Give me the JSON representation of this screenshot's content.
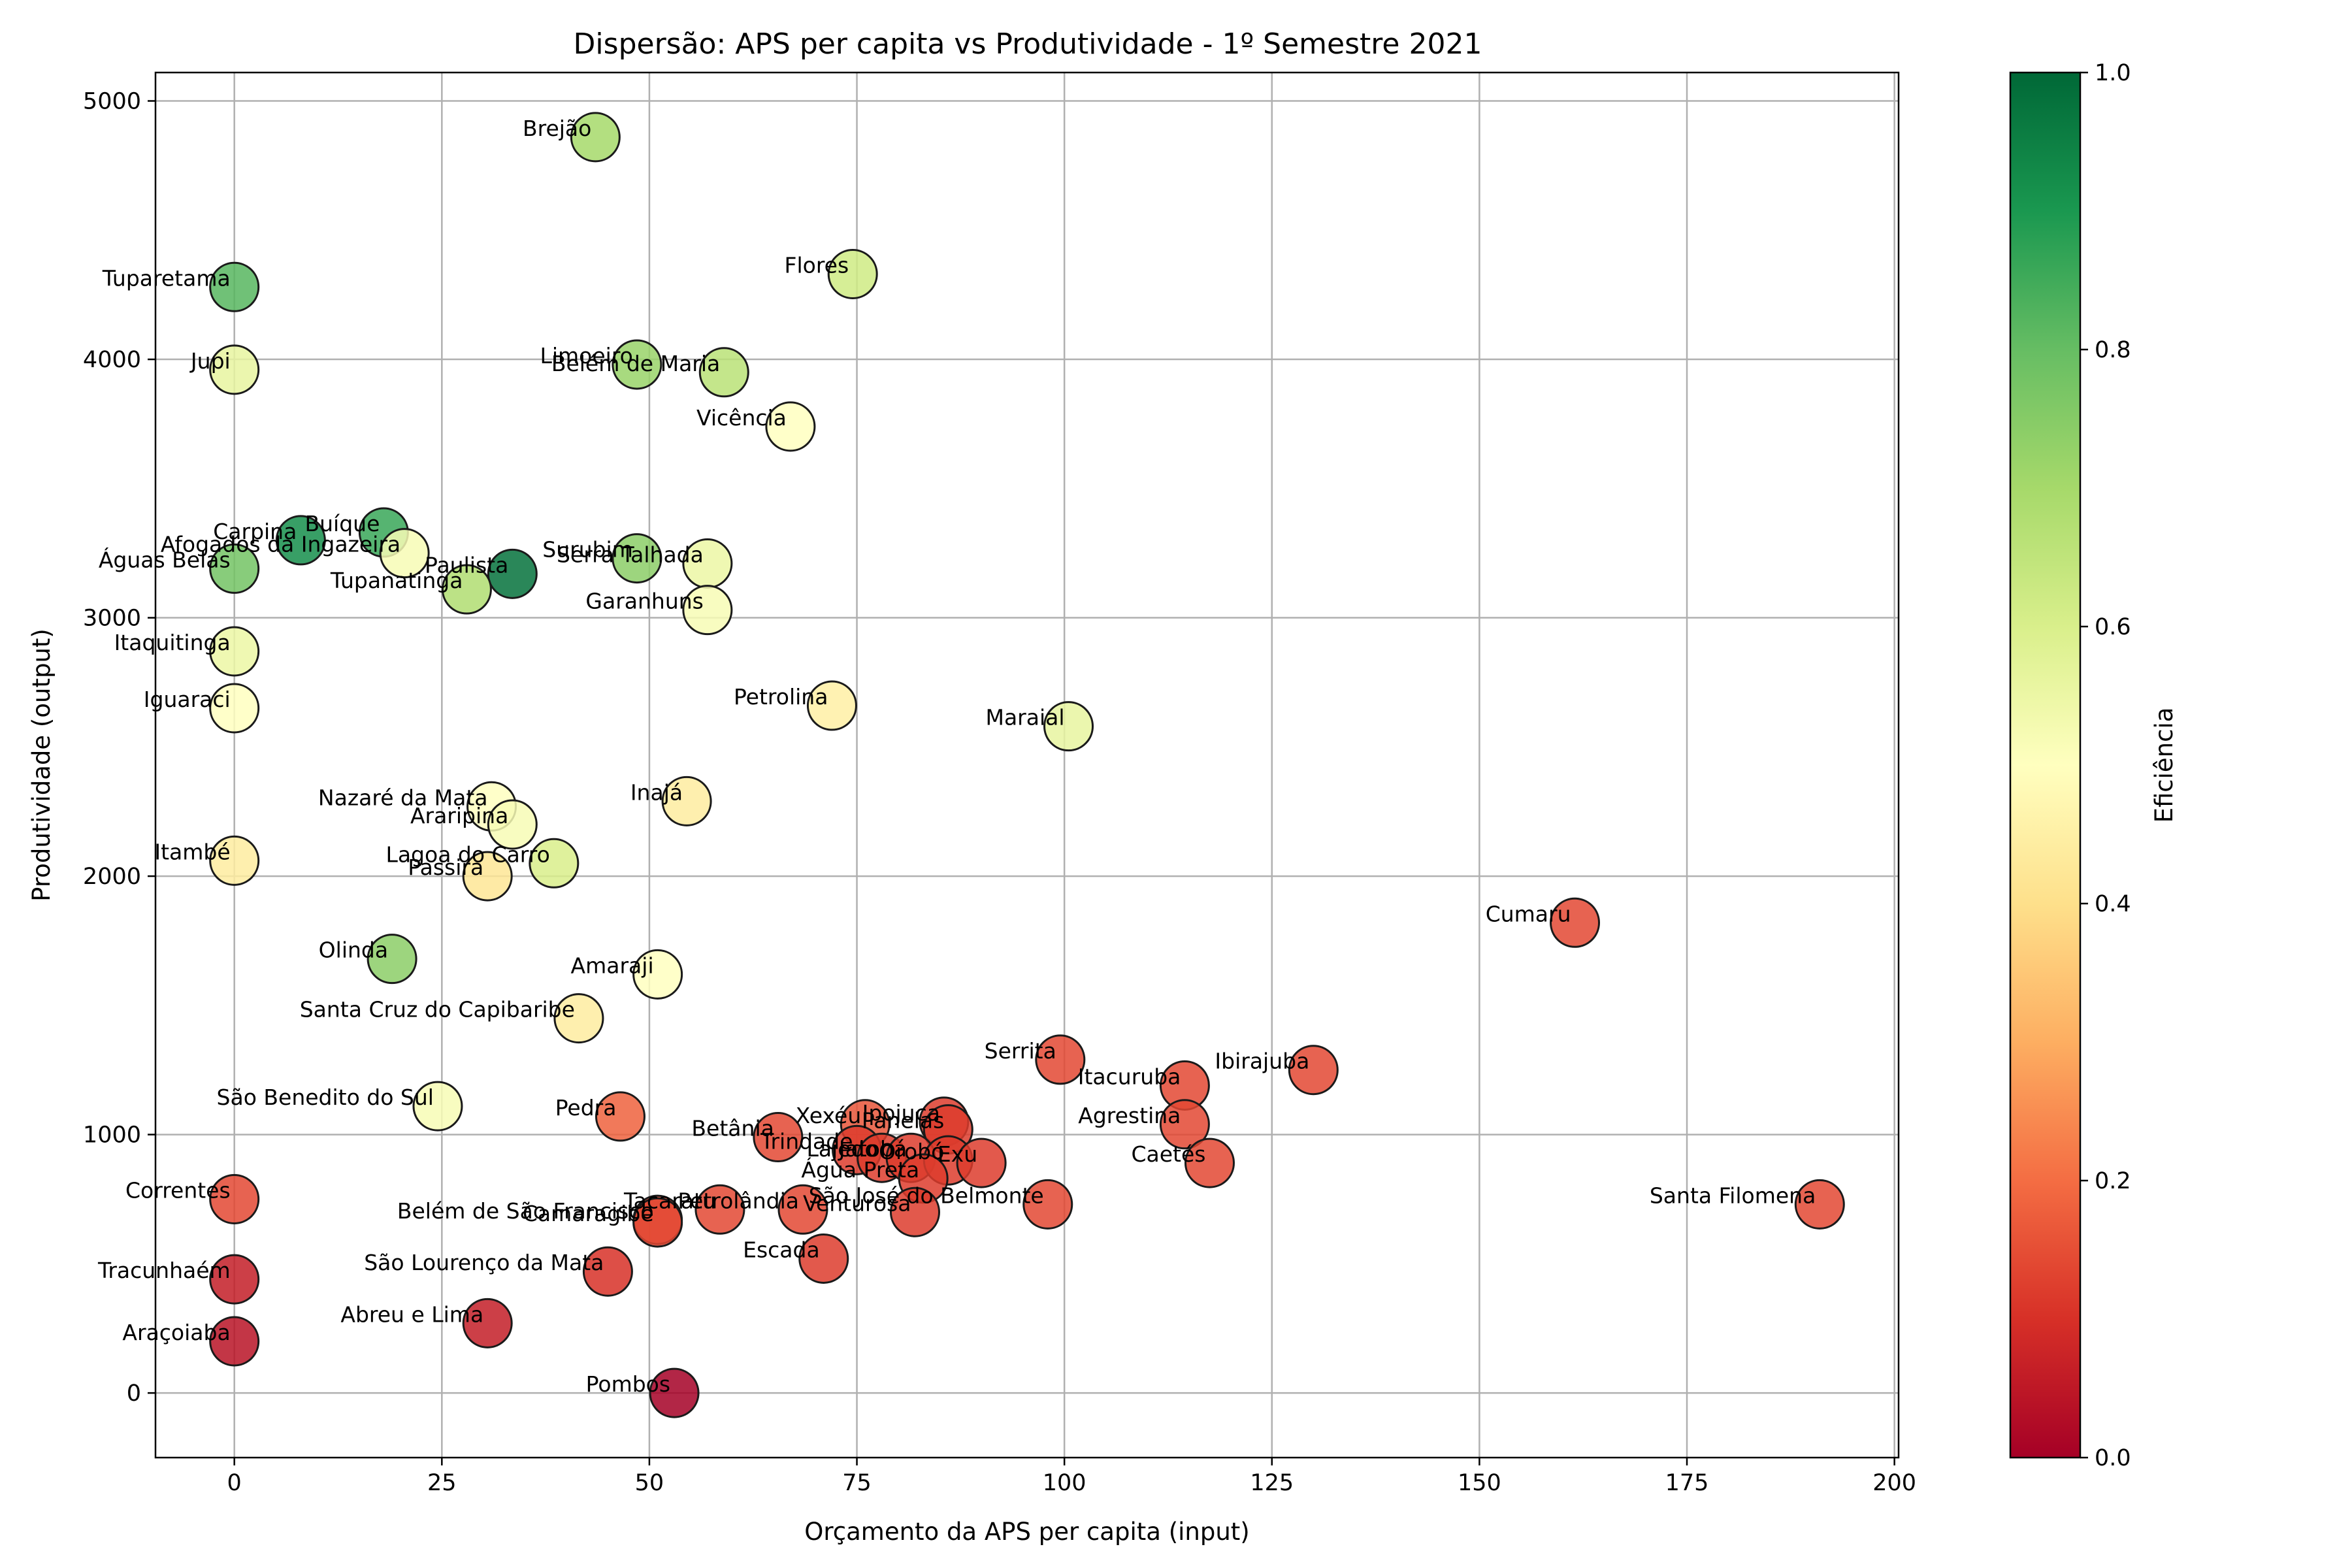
{
  "chart_data": {
    "type": "scatter",
    "title": "Dispersão: APS per capita vs Produtividade - 1º Semestre 2021",
    "xlabel": "Orçamento da APS per capita (input)",
    "ylabel": "Produtividade (output)",
    "xlim": [
      -9.5,
      200.5
    ],
    "ylim": [
      -250,
      5110
    ],
    "xticks": [
      0,
      25,
      50,
      75,
      100,
      125,
      150,
      175,
      200
    ],
    "yticks": [
      0,
      1000,
      2000,
      3000,
      4000,
      5000
    ],
    "grid": true,
    "colorbar": {
      "label": "Eficiência",
      "range": [
        0,
        1
      ],
      "ticks": [
        "0.0",
        "0.2",
        "0.4",
        "0.6",
        "0.8",
        "1.0"
      ],
      "colormap": "RdYlGn"
    },
    "points": [
      {
        "label": "Brejão",
        "x": 43.5,
        "y": 4860,
        "eff": 0.7
      },
      {
        "label": "Flores",
        "x": 74.5,
        "y": 4330,
        "eff": 0.62
      },
      {
        "label": "Tuparetama",
        "x": 0,
        "y": 4280,
        "eff": 0.82
      },
      {
        "label": "Jupi",
        "x": 0,
        "y": 3960,
        "eff": 0.56
      },
      {
        "label": "Limoeiro",
        "x": 48.5,
        "y": 3980,
        "eff": 0.72
      },
      {
        "label": "Belém de Maria",
        "x": 59,
        "y": 3950,
        "eff": 0.66
      },
      {
        "label": "Vicência",
        "x": 67,
        "y": 3740,
        "eff": 0.5
      },
      {
        "label": "Buíque",
        "x": 18,
        "y": 3330,
        "eff": 0.86
      },
      {
        "label": "Carpina",
        "x": 8,
        "y": 3300,
        "eff": 0.92
      },
      {
        "label": "Afogados da Ingazeira",
        "x": 20.5,
        "y": 3250,
        "eff": 0.52
      },
      {
        "label": "Águas Belas",
        "x": 0,
        "y": 3190,
        "eff": 0.78
      },
      {
        "label": "Paulista",
        "x": 33.5,
        "y": 3170,
        "eff": 0.98
      },
      {
        "label": "Tupanatinga",
        "x": 28,
        "y": 3110,
        "eff": 0.68
      },
      {
        "label": "Surubim",
        "x": 48.5,
        "y": 3230,
        "eff": 0.74
      },
      {
        "label": "Serra Talhada",
        "x": 57,
        "y": 3210,
        "eff": 0.55
      },
      {
        "label": "Garanhuns",
        "x": 57,
        "y": 3030,
        "eff": 0.52
      },
      {
        "label": "Itaquitinga",
        "x": 0,
        "y": 2870,
        "eff": 0.55
      },
      {
        "label": "Iguaraci",
        "x": 0,
        "y": 2650,
        "eff": 0.5
      },
      {
        "label": "Petrolina",
        "x": 72,
        "y": 2660,
        "eff": 0.45
      },
      {
        "label": "Maraial",
        "x": 100.5,
        "y": 2580,
        "eff": 0.56
      },
      {
        "label": "Nazaré da Mata",
        "x": 31,
        "y": 2270,
        "eff": 0.5
      },
      {
        "label": "Inajá",
        "x": 54.5,
        "y": 2290,
        "eff": 0.44
      },
      {
        "label": "Araripina",
        "x": 33.5,
        "y": 2200,
        "eff": 0.52
      },
      {
        "label": "Itambé",
        "x": 0,
        "y": 2060,
        "eff": 0.44
      },
      {
        "label": "Lagoa do Carro",
        "x": 38.5,
        "y": 2050,
        "eff": 0.6
      },
      {
        "label": "Passira",
        "x": 30.5,
        "y": 2000,
        "eff": 0.42
      },
      {
        "label": "Cumaru",
        "x": 161.5,
        "y": 1820,
        "eff": 0.14
      },
      {
        "label": "Olinda",
        "x": 19,
        "y": 1680,
        "eff": 0.74
      },
      {
        "label": "Amaraji",
        "x": 51,
        "y": 1620,
        "eff": 0.5
      },
      {
        "label": "Santa Cruz do Capibaribe",
        "x": 41.5,
        "y": 1450,
        "eff": 0.44
      },
      {
        "label": "Serrita",
        "x": 99.5,
        "y": 1290,
        "eff": 0.14
      },
      {
        "label": "Ibirajuba",
        "x": 130,
        "y": 1250,
        "eff": 0.14
      },
      {
        "label": "Itacuruba",
        "x": 114.5,
        "y": 1190,
        "eff": 0.14
      },
      {
        "label": "São Benedito do Sul",
        "x": 24.5,
        "y": 1110,
        "eff": 0.52
      },
      {
        "label": "Pedra",
        "x": 46.5,
        "y": 1070,
        "eff": 0.18
      },
      {
        "label": "Agrestina",
        "x": 114.5,
        "y": 1040,
        "eff": 0.14
      },
      {
        "label": "Xexéu",
        "x": 76,
        "y": 1040,
        "eff": 0.16
      },
      {
        "label": "Ipojuca",
        "x": 85.5,
        "y": 1050,
        "eff": 0.12
      },
      {
        "label": "Panelas",
        "x": 86,
        "y": 1020,
        "eff": 0.12
      },
      {
        "label": "Betânia",
        "x": 65.5,
        "y": 990,
        "eff": 0.14
      },
      {
        "label": "Trindade",
        "x": 75,
        "y": 940,
        "eff": 0.12
      },
      {
        "label": "Lajedo",
        "x": 78,
        "y": 910,
        "eff": 0.12
      },
      {
        "label": "Jatobá",
        "x": 81.5,
        "y": 910,
        "eff": 0.12
      },
      {
        "label": "Orobó",
        "x": 86,
        "y": 900,
        "eff": 0.12
      },
      {
        "label": "Exu",
        "x": 90,
        "y": 890,
        "eff": 0.12
      },
      {
        "label": "Caetés",
        "x": 117.5,
        "y": 890,
        "eff": 0.14
      },
      {
        "label": "Água Preta",
        "x": 83,
        "y": 830,
        "eff": 0.12
      },
      {
        "label": "Correntes",
        "x": 0,
        "y": 750,
        "eff": 0.14
      },
      {
        "label": "Venturosa",
        "x": 82,
        "y": 700,
        "eff": 0.12
      },
      {
        "label": "São José do Belmonte",
        "x": 98,
        "y": 730,
        "eff": 0.14
      },
      {
        "label": "Santa Filomena",
        "x": 191,
        "y": 730,
        "eff": 0.14
      },
      {
        "label": "Belém de São Francisco",
        "x": 51,
        "y": 670,
        "eff": 0.14
      },
      {
        "label": "Tacaratu",
        "x": 58.5,
        "y": 710,
        "eff": 0.14
      },
      {
        "label": "Petrolândia",
        "x": 68.5,
        "y": 710,
        "eff": 0.14
      },
      {
        "label": "Camaragibe",
        "x": 51,
        "y": 660,
        "eff": 0.14
      },
      {
        "label": "Escada",
        "x": 71,
        "y": 520,
        "eff": 0.12
      },
      {
        "label": "São Lourenço da Mata",
        "x": 45,
        "y": 470,
        "eff": 0.1
      },
      {
        "label": "Tracunhaém",
        "x": 0,
        "y": 440,
        "eff": 0.06
      },
      {
        "label": "Abreu e Lima",
        "x": 30.5,
        "y": 270,
        "eff": 0.06
      },
      {
        "label": "Araçoiaba",
        "x": 0,
        "y": 200,
        "eff": 0.04
      },
      {
        "label": "Pombos",
        "x": 53,
        "y": 0,
        "eff": 0.0
      }
    ]
  }
}
